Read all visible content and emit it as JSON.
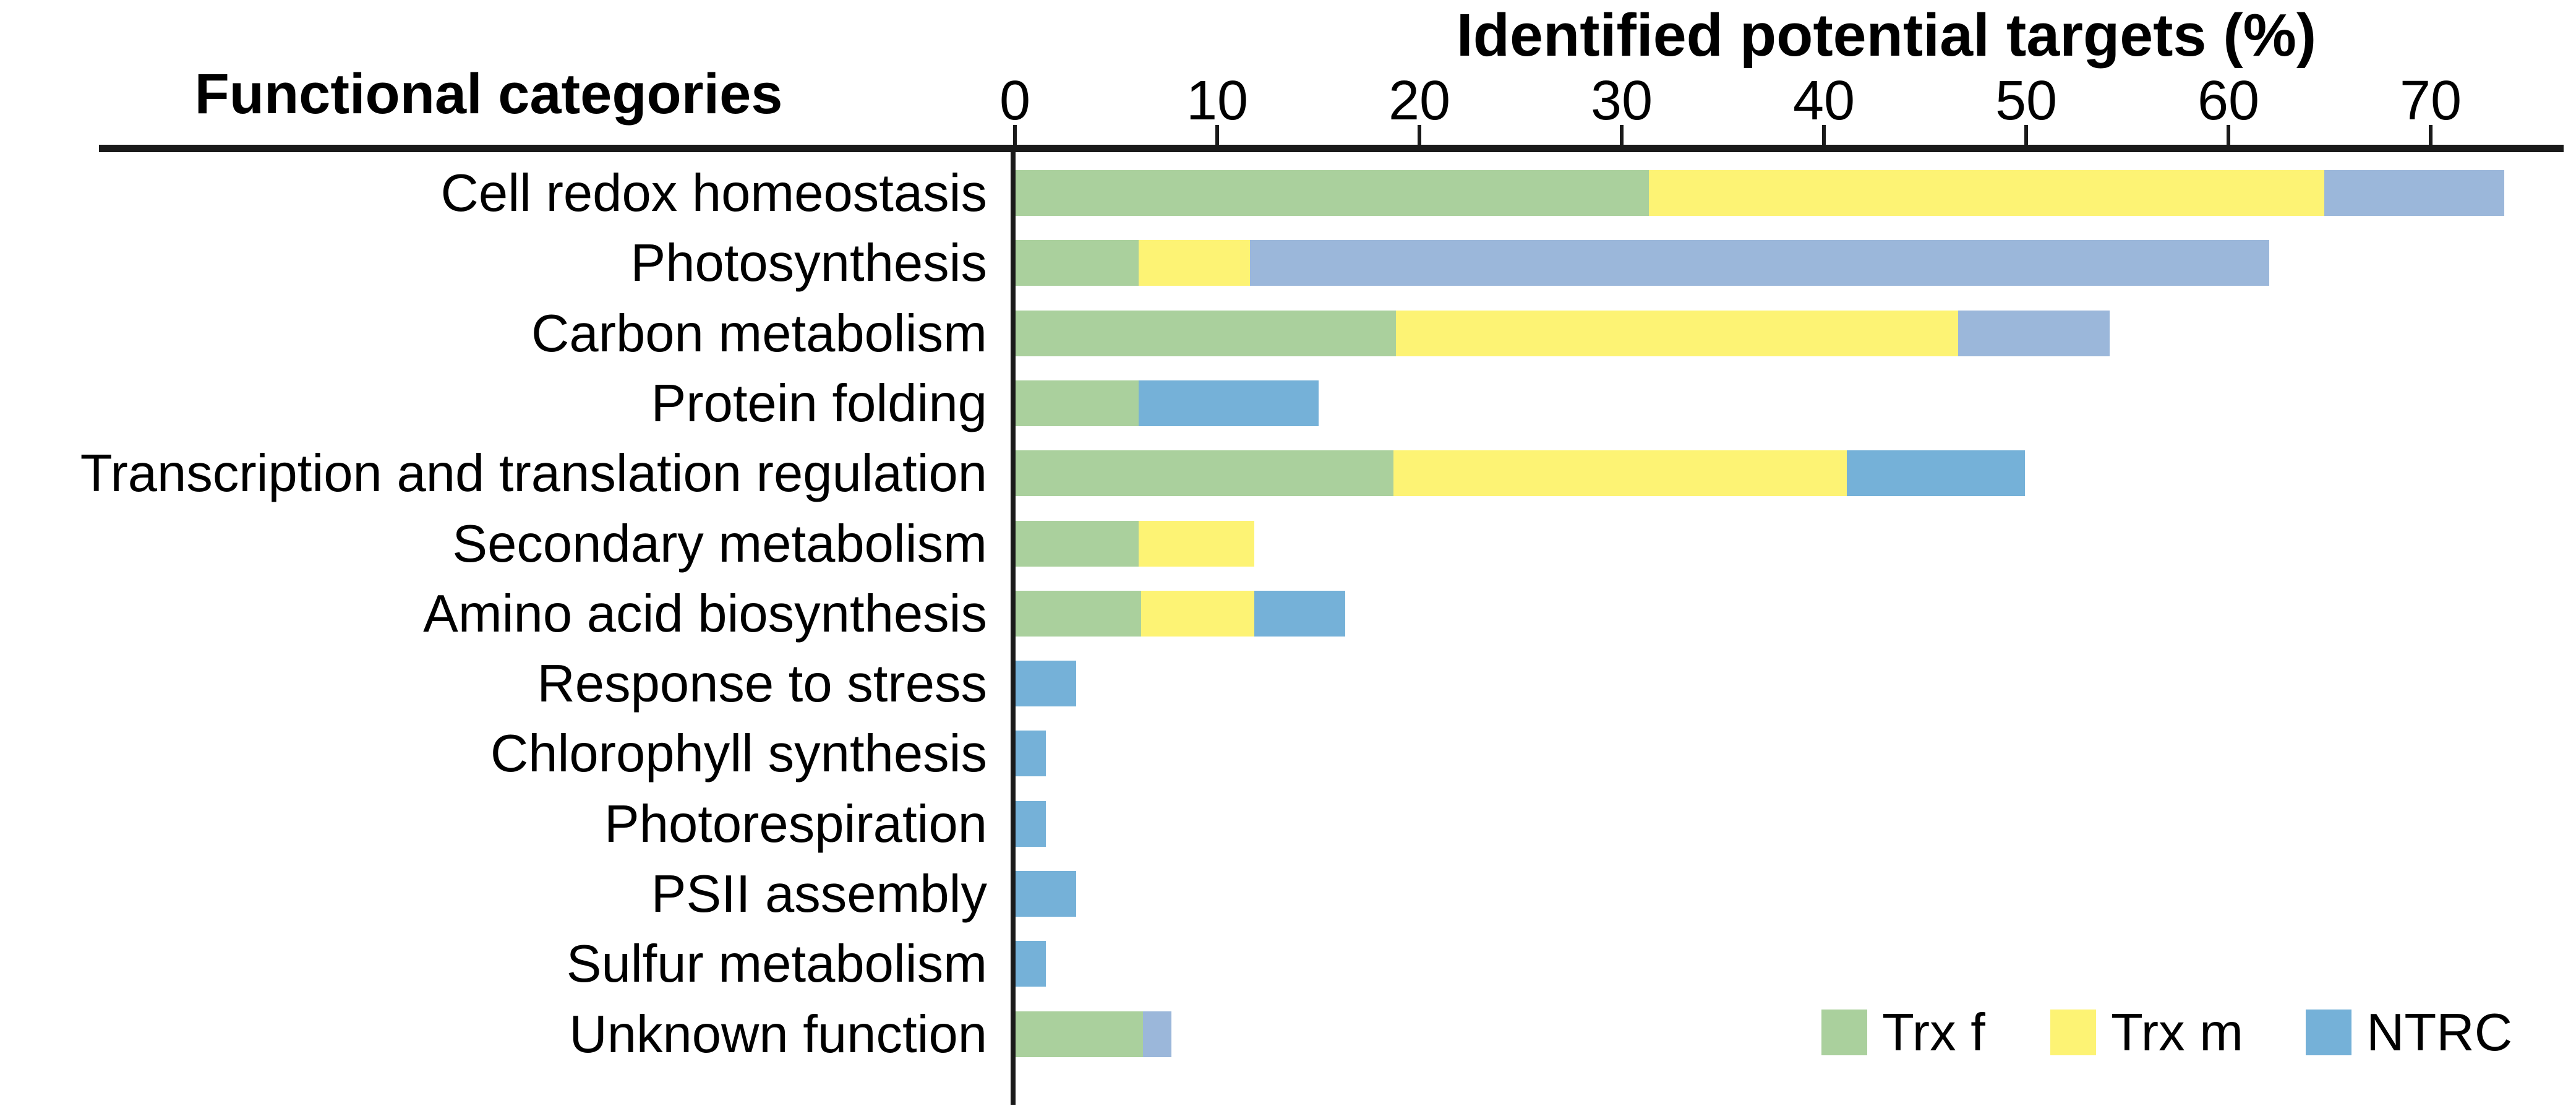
{
  "figure": {
    "left_header": "Functional categories",
    "axis_title": "Identified potential targets (%)"
  },
  "colors": {
    "trx_f_green": "#aad09d",
    "trx_m_yellow": "#fdf374",
    "ntrc_blue_dark": "#75b1d8",
    "ntrc_blue_light": "#9bb7da",
    "axis_black": "#1a1a1a"
  },
  "legend": {
    "items": [
      {
        "label": "Trx f",
        "color": "#aad09d"
      },
      {
        "label": "Trx m",
        "color": "#fdf374"
      },
      {
        "label": "NTRC",
        "color": "#75b1d8"
      }
    ]
  },
  "chart_data": {
    "type": "bar",
    "orientation": "horizontal",
    "stacked": true,
    "title": "Identified potential targets (%)",
    "xlabel": "Identified potential targets (%)",
    "ylabel": "Functional categories",
    "xlim": [
      0,
      70
    ],
    "xticks": [
      0,
      10,
      20,
      30,
      40,
      50,
      60,
      70
    ],
    "grid": false,
    "legend_position": "bottom-right",
    "categories": [
      "Cell redox homeostasis",
      "Photosynthesis",
      "Carbon metabolism",
      "Protein folding",
      "Transcription and translation regulation",
      "Secondary metabolism",
      "Amino acid biosynthesis",
      "Response to stress",
      "Chlorophyll synthesis",
      "Photorespiration",
      "PSII assembly",
      "Sulfur metabolism",
      "Unknown function"
    ],
    "series": [
      {
        "name": "Trx f",
        "color": "#aad09d",
        "values": [
          31.3,
          6.1,
          18.8,
          6.1,
          18.7,
          6.1,
          6.2,
          0,
          0,
          0,
          0,
          0,
          6.3
        ]
      },
      {
        "name": "Trx m",
        "color": "#fdf374",
        "values": [
          33.4,
          5.5,
          27.8,
          0,
          22.4,
          5.7,
          5.6,
          0,
          0,
          0,
          0,
          0,
          0
        ]
      },
      {
        "name": "NTRC",
        "color": "#75b1d8",
        "color_light_variant": "#9bb7da",
        "values": [
          8.9,
          50.4,
          7.5,
          8.9,
          8.8,
          0,
          4.5,
          3.0,
          1.5,
          1.5,
          3.0,
          1.5,
          1.4
        ],
        "shade_per_category": [
          "light",
          "light",
          "light",
          "dark",
          "dark",
          "none",
          "dark",
          "dark",
          "dark",
          "dark",
          "dark",
          "dark",
          "light"
        ]
      }
    ],
    "category_totals": [
      73.6,
      62.0,
      54.1,
      15.0,
      49.9,
      11.8,
      16.3,
      3.0,
      1.5,
      1.5,
      3.0,
      1.5,
      7.7
    ]
  }
}
